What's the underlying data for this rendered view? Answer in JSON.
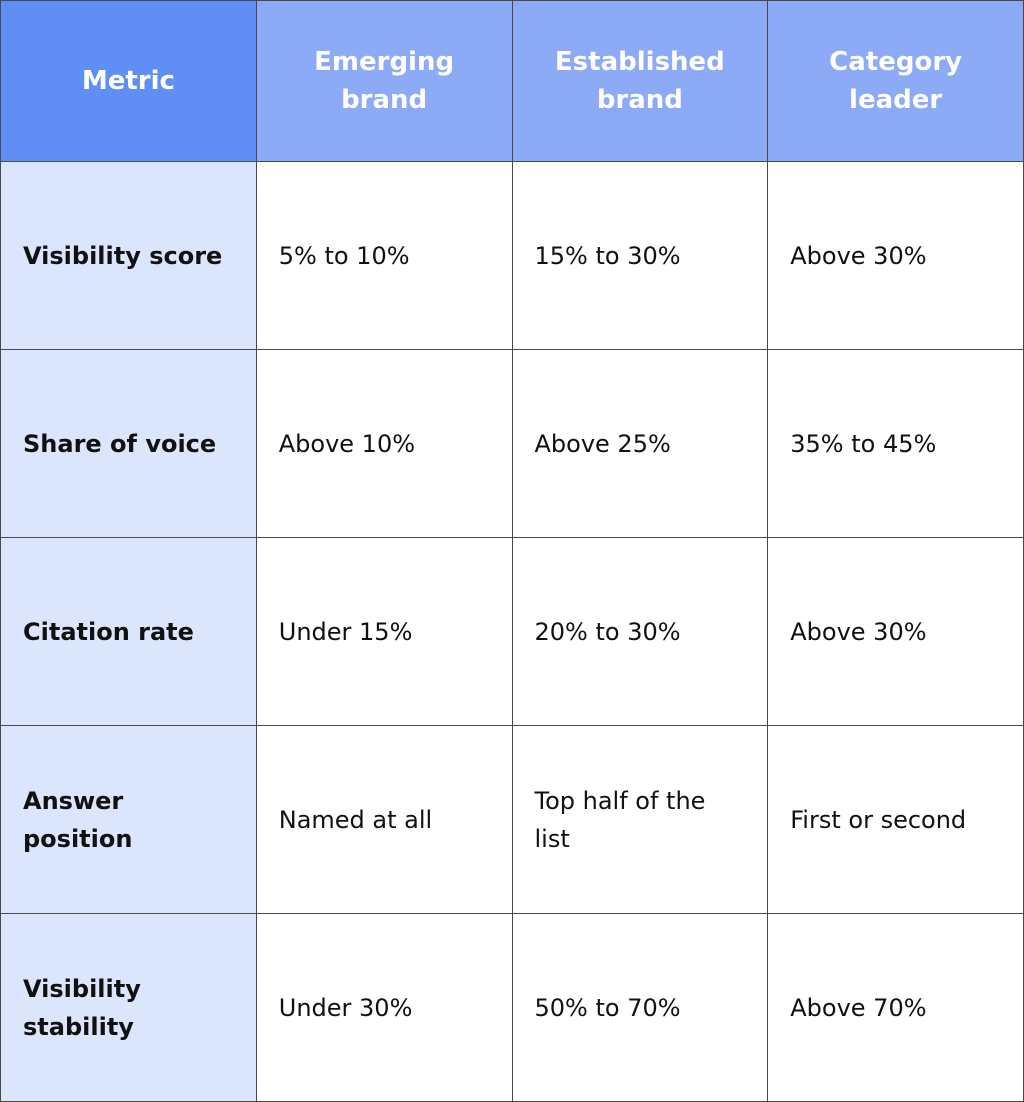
{
  "table": {
    "header": [
      "Metric",
      "Emerging brand",
      "Established brand",
      "Category leader"
    ],
    "rows": [
      [
        "Visibility score",
        "5% to 10%",
        "15% to 30%",
        "Above 30%"
      ],
      [
        "Share of voice",
        "Above 10%",
        "Above 25%",
        "35% to 45%"
      ],
      [
        "Citation rate",
        "Under 15%",
        "20% to 30%",
        "Above 30%"
      ],
      [
        "Answer position",
        "Named at all",
        "Top half of the list",
        "First or second"
      ],
      [
        "Visibility stability",
        "Under 30%",
        "50% to 70%",
        "Above 70%"
      ]
    ]
  }
}
